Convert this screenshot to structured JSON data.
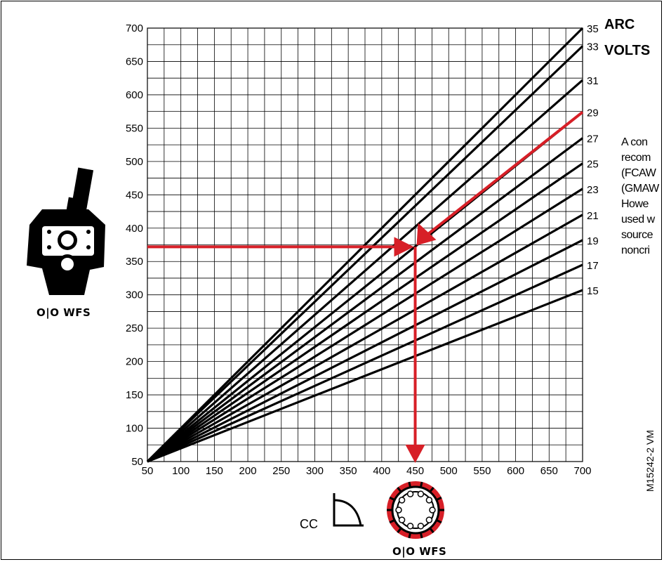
{
  "chart_data": {
    "type": "line",
    "title_lines": [
      "ARC",
      "VOLTS"
    ],
    "xlim": [
      50,
      700
    ],
    "ylim": [
      50,
      700
    ],
    "x_ticks": [
      50,
      100,
      150,
      200,
      250,
      300,
      350,
      400,
      450,
      500,
      550,
      600,
      650,
      700
    ],
    "y_ticks": [
      50,
      100,
      150,
      200,
      250,
      300,
      350,
      400,
      450,
      500,
      550,
      600,
      650,
      700
    ],
    "grid": true,
    "series": [
      {
        "name": "35",
        "x": [
          50,
          700
        ],
        "y": [
          50,
          700
        ]
      },
      {
        "name": "33",
        "x": [
          50,
          700
        ],
        "y": [
          50,
          673
        ]
      },
      {
        "name": "31",
        "x": [
          50,
          700
        ],
        "y": [
          50,
          622
        ]
      },
      {
        "name": "29",
        "x": [
          50,
          700
        ],
        "y": [
          50,
          574
        ]
      },
      {
        "name": "27",
        "x": [
          50,
          700
        ],
        "y": [
          50,
          535
        ]
      },
      {
        "name": "25",
        "x": [
          50,
          700
        ],
        "y": [
          50,
          497
        ]
      },
      {
        "name": "23",
        "x": [
          50,
          700
        ],
        "y": [
          50,
          459
        ]
      },
      {
        "name": "21",
        "x": [
          50,
          700
        ],
        "y": [
          50,
          420
        ]
      },
      {
        "name": "19",
        "x": [
          50,
          700
        ],
        "y": [
          50,
          382
        ]
      },
      {
        "name": "17",
        "x": [
          50,
          700
        ],
        "y": [
          50,
          345
        ]
      },
      {
        "name": "15",
        "x": [
          50,
          700
        ],
        "y": [
          50,
          307
        ]
      }
    ],
    "example_path": {
      "from_volts_line": {
        "x": 700,
        "y": 574
      },
      "intersection": {
        "x": 450,
        "y": 372
      },
      "horizontal_start": {
        "x": 50,
        "y": 372
      },
      "down_to_x": 450,
      "color": "#d71f27"
    }
  },
  "left_icon_label": "O|O WFS",
  "bottom_icon_label": "O|O WFS",
  "cc_label": "CC",
  "ref_code": "M15242-2  VM",
  "side_text": [
    "A con",
    "recom",
    "(FCAW",
    "(GMAW",
    "Howe",
    "used w",
    "source",
    "noncri"
  ],
  "colors": {
    "accent": "#d71f27",
    "line": "#000000"
  }
}
